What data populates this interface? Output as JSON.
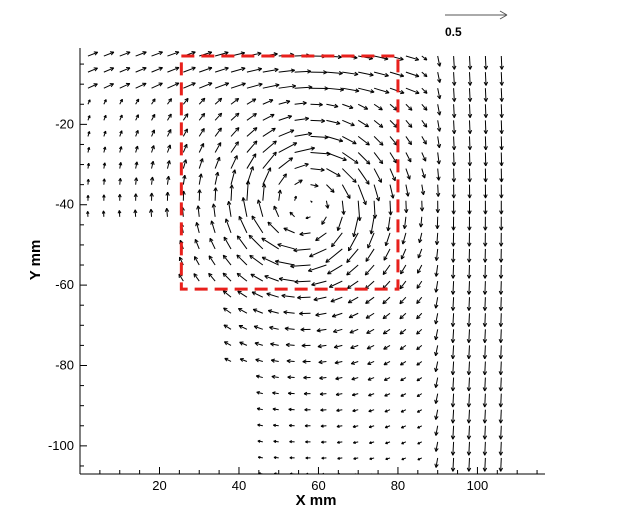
{
  "chart_data": {
    "type": "vector_field",
    "xlabel": "X mm",
    "ylabel": "Y mm",
    "xlim": [
      0,
      117
    ],
    "ylim": [
      -107,
      -1
    ],
    "x_ticks": [
      20,
      40,
      60,
      80,
      100
    ],
    "y_ticks": [
      -20,
      -40,
      -60,
      -80,
      -100
    ],
    "reference_vector": {
      "label": "0.5",
      "magnitude": 0.5
    },
    "highlight_box": {
      "x0": 25.5,
      "x1": 80,
      "y0": -61,
      "y1": -3,
      "color": "#e8201c",
      "style": "dashed"
    },
    "field": {
      "grid_step": 4,
      "regions": [
        {
          "x0": 1,
          "x1": 106,
          "y0": -45,
          "y1": -3
        },
        {
          "x0": 25.5,
          "x1": 106,
          "y0": -61,
          "y1": -45
        },
        {
          "x0": 38,
          "x1": 106,
          "y0": -80,
          "y1": -61
        },
        {
          "x0": 46,
          "x1": 106,
          "y0": -107,
          "y1": -80
        }
      ],
      "vortex": {
        "center_x": 57,
        "center_y": -40,
        "core_radius": 14,
        "strength": 0.45
      },
      "jet": {
        "x_from": 86,
        "x_to": 106,
        "vy": -0.28
      },
      "top_flow": {
        "y_from": -14,
        "vx": 0.3
      }
    },
    "colors": {
      "arrows": "#000000",
      "frame": "#000000"
    }
  }
}
